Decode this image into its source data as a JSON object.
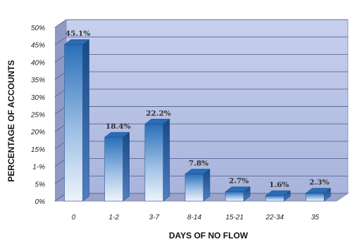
{
  "chart_data": {
    "type": "bar",
    "xlabel": "DAYS OF NO FLOW",
    "ylabel": "PERCENTAGE OF ACCOUNTS",
    "ylim": [
      0,
      50
    ],
    "ytick_labels": [
      "0%",
      "5%",
      "1-%",
      "15%",
      "20%",
      "25%",
      "30%",
      "35%",
      "40%",
      "45%",
      "50%"
    ],
    "categories": [
      "0",
      "1-2",
      "3-7",
      "8-14",
      "15-21",
      "22-34",
      "35"
    ],
    "values": [
      45.1,
      18.4,
      22.2,
      7.8,
      2.7,
      1.6,
      2.3
    ],
    "data_labels": [
      "45.1%",
      "18.4%",
      "22.2%",
      "7.8%",
      "2.7%",
      "1.6%",
      "2.3%"
    ],
    "grid": true,
    "style": "3d-bar",
    "colors": {
      "wall": "#b9c3e4",
      "wall_shade": "#8f9bc6",
      "floor": "#9aa3c8",
      "bar_top": "#1f63ad",
      "bar_light": "#e6eff9",
      "bar_side": "#1a4f8f"
    }
  }
}
